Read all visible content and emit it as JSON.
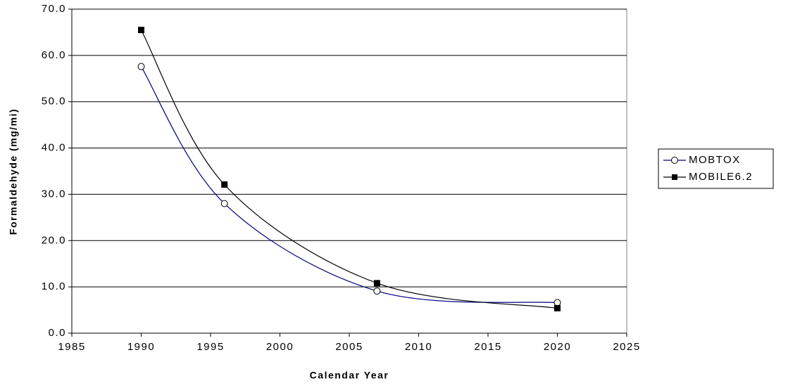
{
  "chart_data": {
    "type": "line",
    "x_label": "Calendar Year",
    "y_label": "Formaldehyde (mg/mi)",
    "x": [
      1990,
      1996,
      2007,
      2020
    ],
    "series": [
      {
        "name": "MOBTOX",
        "color": "#000080",
        "marker": "open-circle",
        "values": [
          57.6,
          28.0,
          9.1,
          6.6
        ]
      },
      {
        "name": "MOBILE6.2",
        "color": "#000000",
        "marker": "square",
        "values": [
          65.5,
          32.1,
          10.8,
          5.4
        ]
      }
    ],
    "xlim": [
      1985,
      2025
    ],
    "xticks": [
      1985,
      1990,
      1995,
      2000,
      2005,
      2010,
      2015,
      2020,
      2025
    ],
    "ylim": [
      0,
      70
    ],
    "yticks": [
      {
        "value": 0,
        "label": "0.0"
      },
      {
        "value": 10,
        "label": "10.0"
      },
      {
        "value": 20,
        "label": "20.0"
      },
      {
        "value": 30,
        "label": "30.0"
      },
      {
        "value": 40,
        "label": "40.0"
      },
      {
        "value": 50,
        "label": "50.0"
      },
      {
        "value": 60,
        "label": "60.0"
      },
      {
        "value": 70,
        "label": "70.0"
      }
    ],
    "grid": true,
    "legend_position": "right"
  }
}
